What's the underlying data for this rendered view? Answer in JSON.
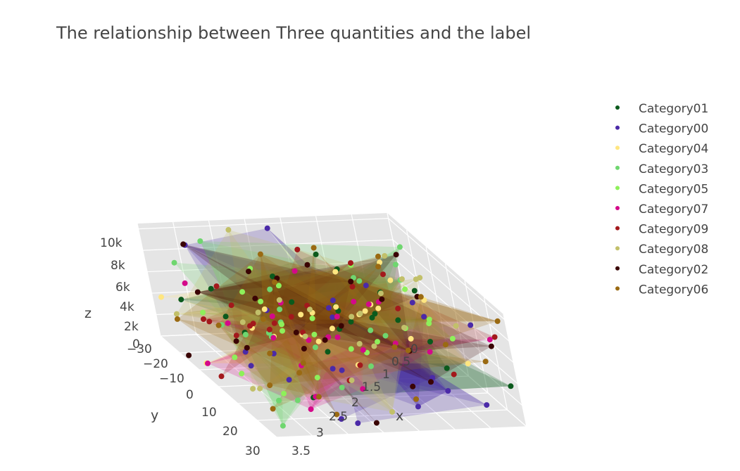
{
  "chart_data": {
    "type": "scatter3d",
    "title": "The relationship between Three quantities and the label",
    "axes": {
      "x": {
        "label": "x",
        "ticks": [
          "0",
          "0.5",
          "1",
          "1.5",
          "2",
          "2.5",
          "3",
          "3.5"
        ]
      },
      "y": {
        "label": "y",
        "ticks": [
          "−30",
          "−20",
          "−10",
          "0",
          "10",
          "20",
          "30"
        ]
      },
      "z": {
        "label": "z",
        "ticks": [
          "0",
          "2k",
          "4k",
          "6k",
          "8k",
          "10k"
        ]
      }
    },
    "ranges": {
      "x": [
        0,
        3.5
      ],
      "y": [
        -30,
        30
      ],
      "z": [
        0,
        10500
      ]
    },
    "legend_position": "right",
    "series": [
      {
        "name": "Category01",
        "color": "#0b5a1c"
      },
      {
        "name": "Category00",
        "color": "#4b2aa8"
      },
      {
        "name": "Category04",
        "color": "#ffe680"
      },
      {
        "name": "Category03",
        "color": "#6fd66f"
      },
      {
        "name": "Category05",
        "color": "#8ef05a"
      },
      {
        "name": "Category07",
        "color": "#d4098a"
      },
      {
        "name": "Category09",
        "color": "#a3191c"
      },
      {
        "name": "Category08",
        "color": "#c2c06a"
      },
      {
        "name": "Category02",
        "color": "#3a0404"
      },
      {
        "name": "Category06",
        "color": "#9a6a12"
      }
    ],
    "points_per_series": 22,
    "grid": true,
    "mesh_surfaces": true
  }
}
